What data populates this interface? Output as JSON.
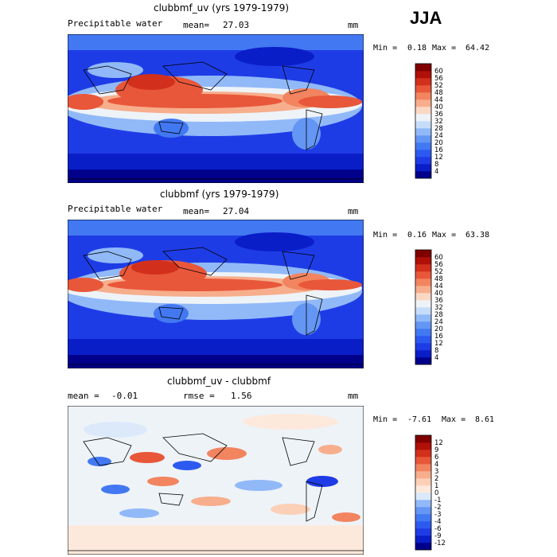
{
  "season": "JJA",
  "chart_data": [
    {
      "type": "heatmap",
      "title": "clubbmf_uv (yrs 1979-1979)",
      "variable": "Precipitable water",
      "mean_label": "mean=",
      "mean": "27.03",
      "units": "mm",
      "min_label": "Min =",
      "min": "0.18",
      "max_label": "Max =",
      "max": "64.42",
      "colorbar": {
        "levels": [
          "4",
          "8",
          "12",
          "16",
          "20",
          "24",
          "28",
          "32",
          "36",
          "40",
          "44",
          "48",
          "52",
          "56",
          "60"
        ],
        "colors": [
          "#00008b",
          "#0a1ec8",
          "#1e3ce6",
          "#2c5af0",
          "#4278f2",
          "#6496f4",
          "#91b9f8",
          "#c6ddfa",
          "#eef3f8",
          "#fbd8c4",
          "#f7ae8c",
          "#f28460",
          "#e8573a",
          "#d2301c",
          "#b01008",
          "#800000"
        ]
      }
    },
    {
      "type": "heatmap",
      "title": "clubbmf (yrs 1979-1979)",
      "variable": "Precipitable water",
      "mean_label": "mean=",
      "mean": "27.04",
      "units": "mm",
      "min_label": "Min =",
      "min": "0.16",
      "max_label": "Max =",
      "max": "63.38",
      "colorbar": {
        "levels": [
          "4",
          "8",
          "12",
          "16",
          "20",
          "24",
          "28",
          "32",
          "36",
          "40",
          "44",
          "48",
          "52",
          "56",
          "60"
        ],
        "colors": [
          "#00008b",
          "#0a1ec8",
          "#1e3ce6",
          "#2c5af0",
          "#4278f2",
          "#6496f4",
          "#91b9f8",
          "#c6ddfa",
          "#eef3f8",
          "#fbd8c4",
          "#f7ae8c",
          "#f28460",
          "#e8573a",
          "#d2301c",
          "#b01008",
          "#800000"
        ]
      }
    },
    {
      "type": "heatmap",
      "title": "clubbmf_uv - clubbmf",
      "mean_label": "mean =",
      "mean": "-0.01",
      "rmse_label": "rmse =",
      "rmse": "1.56",
      "units": "mm",
      "min_label": "Min =",
      "min": "-7.61",
      "max_label": "Max =",
      "max": "8.61",
      "colorbar": {
        "levels": [
          "-12",
          "-9",
          "-6",
          "-4",
          "-3",
          "-2",
          "-1",
          "0",
          "1",
          "2",
          "3",
          "4",
          "6",
          "9",
          "12"
        ],
        "colors": [
          "#00008b",
          "#0a1ec8",
          "#1e3ce6",
          "#2c5af0",
          "#4278f2",
          "#6496f4",
          "#91b9f8",
          "#dbe9fb",
          "#fde9dc",
          "#fbd0b6",
          "#f7ae8c",
          "#f28460",
          "#e8573a",
          "#d2301c",
          "#b01008",
          "#800000"
        ]
      }
    }
  ]
}
